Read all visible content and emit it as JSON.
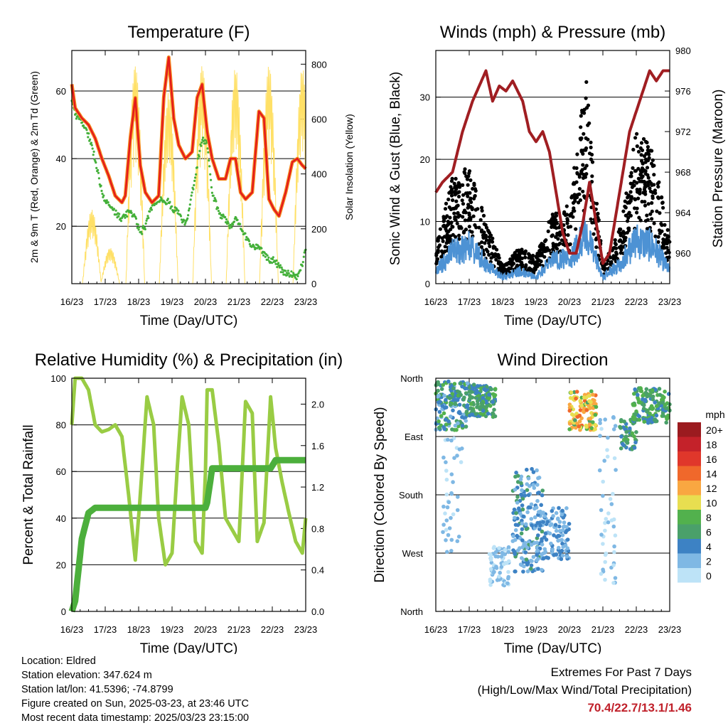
{
  "x_ticks": [
    "16/23",
    "17/23",
    "18/23",
    "19/23",
    "20/23",
    "21/23",
    "22/23",
    "23/23"
  ],
  "colors": {
    "temp2m": "#e41a1c",
    "temp9m": "#f58a1f",
    "dew": "#44b03a",
    "solar": "#ffe066",
    "wind": "#4d92d4",
    "gust": "#000000",
    "pressure": "#a01e22",
    "rh": "#99cc44",
    "precip": "#4caf3c",
    "grid": "#000000",
    "extremes": "#c0212b"
  },
  "panels": {
    "temperature": {
      "title": "Temperature (F)",
      "xlabel": "Time (Day/UTC)",
      "ylabel_left": "2m & 9m T (Red, Orange) & 2m Td (Green)",
      "ylabel_right": "Solar Insolation (Yellow)"
    },
    "winds": {
      "title": "Winds (mph) & Pressure (mb)",
      "xlabel": "Time (Day/UTC)",
      "ylabel_left": "Sonic Wind & Gust (Blue, Black)",
      "ylabel_right": "Station Pressure (Maroon)"
    },
    "humidity": {
      "title": "Relative Humidity (%) & Precipitation (in)",
      "xlabel": "Time (Day/UTC)",
      "ylabel_left": "Percent & Total Rainfall"
    },
    "direction": {
      "title": "Wind Direction",
      "xlabel": "Time (Day/UTC)",
      "ylabel_left": "Direction (Colored By Speed)"
    }
  },
  "legend": {
    "title": "mph",
    "labels": [
      "20+",
      "18",
      "16",
      "14",
      "12",
      "10",
      "8",
      "6",
      "4",
      "2",
      "0"
    ],
    "colors": [
      "#9b1b1f",
      "#c4222a",
      "#e0372b",
      "#f0682b",
      "#f9a741",
      "#e8de50",
      "#52b14d",
      "#4aa06a",
      "#3d82c4",
      "#7fb8e4",
      "#bde3f7"
    ]
  },
  "info": {
    "location": "Location: Eldred",
    "elevation": "Station elevation: 347.624 m",
    "latlon": "Station lat/lon: 41.5396; -74.8799",
    "created": "Figure created on Sun, 2025-03-23, at 23:46 UTC",
    "recent": "Most recent data timestamp: 2025/03/23 23:15:00"
  },
  "extremes": {
    "line1": "Extremes For Past 7 Days",
    "line2": "(High/Low/Max Wind/Total Precipitation)",
    "values": "70.4/22.7/13.1/1.46"
  },
  "chart_data": [
    {
      "type": "line",
      "title": "Temperature (F)",
      "xlabel": "Time (Day/UTC)",
      "ylabel": "2m & 9m T (Red, Orange) & 2m Td (Green)",
      "y2label": "Solar Insolation (Yellow)",
      "x_days": [
        0,
        0.1,
        0.3,
        0.5,
        0.7,
        0.9,
        1.1,
        1.3,
        1.5,
        1.6,
        1.75,
        1.9,
        2.05,
        2.2,
        2.4,
        2.6,
        2.75,
        2.9,
        3.05,
        3.2,
        3.4,
        3.6,
        3.75,
        3.9,
        4.05,
        4.2,
        4.4,
        4.6,
        4.75,
        4.9,
        5.05,
        5.2,
        5.4,
        5.6,
        5.75,
        5.9,
        6.05,
        6.2,
        6.4,
        6.6,
        6.75,
        6.9,
        7.0
      ],
      "ylim": [
        3,
        72
      ],
      "y2lim": [
        0,
        850
      ],
      "y2ticks": [
        0,
        200,
        400,
        600,
        800
      ],
      "yticks": [
        20,
        40,
        60
      ],
      "series": [
        {
          "name": "2m T",
          "values": [
            62,
            55,
            52,
            50,
            46,
            40,
            35,
            29,
            27,
            29,
            46,
            58,
            38,
            30,
            27,
            29,
            58,
            70,
            52,
            44,
            40,
            42,
            58,
            62,
            48,
            40,
            34,
            34,
            40,
            40,
            30,
            28,
            30,
            54,
            52,
            28,
            25,
            23,
            30,
            39,
            40,
            38,
            37
          ]
        },
        {
          "name": "2m Td",
          "values": [
            57,
            53,
            51,
            47,
            40,
            30,
            26,
            24,
            22,
            23,
            25,
            22,
            18,
            20,
            26,
            28,
            28,
            27,
            25,
            24,
            20,
            30,
            38,
            46,
            44,
            30,
            24,
            22,
            20,
            22,
            20,
            17,
            14,
            14,
            12,
            10,
            10,
            8,
            6,
            6,
            5,
            9,
            14
          ]
        },
        {
          "name": "Solar Insolation",
          "values": [
            0,
            0,
            0,
            0,
            270,
            50,
            0,
            0,
            0,
            0,
            0,
            750,
            0,
            0,
            0,
            0,
            0,
            820,
            0,
            0,
            0,
            0,
            0,
            760,
            0,
            0,
            0,
            0,
            0,
            810,
            0,
            0,
            0,
            0,
            0,
            800,
            0,
            0,
            0,
            0,
            0,
            790,
            0
          ]
        }
      ]
    },
    {
      "type": "line",
      "title": "Winds (mph) & Pressure (mb)",
      "xlabel": "Time (Day/UTC)",
      "ylabel": "Sonic Wind & Gust (Blue, Black)",
      "y2label": "Station Pressure (Maroon)",
      "ylim": [
        0,
        37.5
      ],
      "y2lim": [
        957.0,
        980.0
      ],
      "yticks": [
        0,
        10,
        20,
        30
      ],
      "y2ticks": [
        960,
        964,
        968,
        972,
        976,
        980
      ],
      "pressure_x": [
        0,
        0.2,
        0.5,
        0.8,
        1.1,
        1.5,
        1.7,
        1.9,
        2.1,
        2.3,
        2.6,
        2.8,
        3.0,
        3.2,
        3.4,
        3.6,
        3.8,
        4.0,
        4.2,
        4.4,
        4.6,
        4.8,
        5.0,
        5.2,
        5.4,
        5.6,
        5.8,
        6.0,
        6.2,
        6.4,
        6.6,
        6.8,
        7.0
      ],
      "pressure": [
        966,
        967,
        968,
        972,
        975,
        978,
        975,
        976.5,
        976,
        977,
        975,
        972,
        971,
        972,
        970,
        966,
        962,
        960,
        960,
        963,
        967,
        963,
        959,
        960,
        964,
        968,
        972,
        974,
        976,
        978,
        977,
        978,
        978
      ],
      "wind_x": [
        0,
        0.5,
        1,
        1.5,
        2,
        2.5,
        3,
        3.5,
        4,
        4.5,
        5,
        5.5,
        6,
        6.5,
        7
      ],
      "wind_mean": [
        2,
        5,
        6,
        3,
        1,
        2,
        1,
        4,
        4,
        8,
        1,
        3,
        7,
        6,
        2
      ],
      "gust_mean": [
        4,
        12,
        13,
        7,
        2,
        4,
        3,
        8,
        9,
        23,
        2,
        6,
        17,
        15,
        5
      ]
    },
    {
      "type": "line",
      "title": "Relative Humidity (%) & Precipitation (in)",
      "xlabel": "Time (Day/UTC)",
      "ylabel": "Percent & Total Rainfall",
      "ylim": [
        0,
        100
      ],
      "y2lim": [
        0,
        2.25
      ],
      "yticks": [
        0,
        20,
        40,
        60,
        80,
        100
      ],
      "y2ticks": [
        0.0,
        0.4,
        0.8,
        1.2,
        1.6,
        2.0
      ],
      "x_days": [
        0,
        0.1,
        0.3,
        0.5,
        0.7,
        0.9,
        1.1,
        1.3,
        1.5,
        1.7,
        1.9,
        2.05,
        2.25,
        2.45,
        2.6,
        2.8,
        3.0,
        3.15,
        3.3,
        3.5,
        3.7,
        3.9,
        4.0,
        4.05,
        4.2,
        4.4,
        4.6,
        4.8,
        5.0,
        5.2,
        5.4,
        5.55,
        5.75,
        5.95,
        6.1,
        6.3,
        6.5,
        6.7,
        6.9,
        7.0
      ],
      "series": [
        {
          "name": "RH",
          "values": [
            80,
            100,
            100,
            95,
            80,
            77,
            78,
            80,
            75,
            50,
            22,
            50,
            92,
            80,
            40,
            20,
            25,
            60,
            92,
            80,
            30,
            25,
            60,
            95,
            95,
            72,
            40,
            35,
            30,
            90,
            85,
            30,
            38,
            92,
            70,
            55,
            42,
            30,
            25,
            40
          ]
        },
        {
          "name": "Precip",
          "values": [
            0,
            0.1,
            0.7,
            0.95,
            1.0,
            1.0,
            1.0,
            1.0,
            1.0,
            1.0,
            1.0,
            1.0,
            1.0,
            1.0,
            1.0,
            1.0,
            1.0,
            1.0,
            1.0,
            1.0,
            1.0,
            1.0,
            1.0,
            1.05,
            1.38,
            1.38,
            1.38,
            1.38,
            1.38,
            1.38,
            1.38,
            1.38,
            1.38,
            1.38,
            1.46,
            1.46,
            1.46,
            1.46,
            1.46,
            1.46
          ]
        }
      ]
    },
    {
      "type": "scatter",
      "title": "Wind Direction",
      "xlabel": "Time (Day/UTC)",
      "ylabel": "Direction (Colored By Speed)",
      "ytick_labels": [
        "North",
        "West",
        "South",
        "East",
        "North"
      ],
      "clusters": [
        {
          "x0": 0.0,
          "x1": 1.0,
          "d0": 280,
          "d1": 355,
          "n": 160,
          "s0": 2,
          "s1": 8
        },
        {
          "x0": 0.2,
          "x1": 0.8,
          "d0": 90,
          "d1": 270,
          "n": 40,
          "s0": 0,
          "s1": 3
        },
        {
          "x0": 1.0,
          "x1": 1.8,
          "d0": 300,
          "d1": 350,
          "n": 130,
          "s0": 3,
          "s1": 8
        },
        {
          "x0": 1.6,
          "x1": 2.2,
          "d0": 40,
          "d1": 100,
          "n": 70,
          "s0": 0,
          "s1": 3
        },
        {
          "x0": 2.3,
          "x1": 3.2,
          "d0": 60,
          "d1": 220,
          "n": 170,
          "s0": 1,
          "s1": 6
        },
        {
          "x0": 3.0,
          "x1": 4.0,
          "d0": 80,
          "d1": 160,
          "n": 130,
          "s0": 1,
          "s1": 5
        },
        {
          "x0": 4.0,
          "x1": 4.8,
          "d0": 280,
          "d1": 340,
          "n": 120,
          "s0": 6,
          "s1": 14
        },
        {
          "x0": 4.9,
          "x1": 5.4,
          "d0": 40,
          "d1": 300,
          "n": 50,
          "s0": 0,
          "s1": 2
        },
        {
          "x0": 5.5,
          "x1": 6.0,
          "d0": 250,
          "d1": 300,
          "n": 50,
          "s0": 3,
          "s1": 8
        },
        {
          "x0": 5.9,
          "x1": 7.0,
          "d0": 290,
          "d1": 345,
          "n": 150,
          "s0": 4,
          "s1": 9
        }
      ]
    }
  ]
}
